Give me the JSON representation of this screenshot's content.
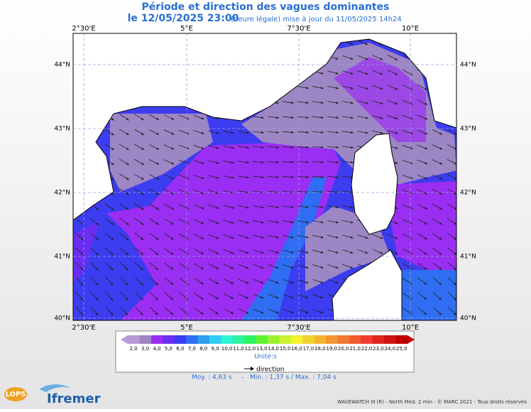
{
  "header": {
    "title": "Période et direction des vagues dominantes",
    "date": "le 12/05/2025 23:00",
    "update": "(heure légale) mise à jour du 11/05/2025 14h24"
  },
  "map": {
    "lon_labels": [
      "2°30'E",
      "5°E",
      "7°30'E",
      "10°E"
    ],
    "lat_labels": [
      "44°N",
      "43°N",
      "42°N",
      "41°N",
      "40°N"
    ]
  },
  "legend": {
    "labels": [
      "2,0",
      "3,0",
      "4,0",
      "5,0",
      "6,0",
      "7,0",
      "8,0",
      "9,0",
      "10,0",
      "11,0",
      "12,0",
      "13,0",
      "14,0",
      "15,0",
      "16,0",
      "17,0",
      "18,0",
      "19,0",
      "20,0",
      "21,0",
      "22,0",
      "23,0",
      "24,0",
      "25,0"
    ],
    "colors": [
      "#b89ad6",
      "#9d86c4",
      "#9a2ef2",
      "#6a2ef2",
      "#3a3af2",
      "#2f6ef2",
      "#2f9ef2",
      "#2fcdf2",
      "#2ff2d6",
      "#2ff2a0",
      "#2ff264",
      "#5ef22f",
      "#9af22f",
      "#cdf22f",
      "#f2f22f",
      "#f2d22f",
      "#f2b42f",
      "#f2962f",
      "#f2782f",
      "#f25a2f",
      "#f23c2f",
      "#e0251f",
      "#d01414",
      "#c00000"
    ],
    "unit": "Unité:s",
    "arrow_label": "direction"
  },
  "stats": [
    "Moy. : 4,63 s",
    "-",
    "Min. : 1,37 s / Max. : 7,04 s"
  ],
  "footer": "WAVEWATCH III (R) - North Med. 2 min - © MARC 2021 - Tous droits réservés",
  "logos": [
    "LOPS",
    "Ifremer"
  ]
}
